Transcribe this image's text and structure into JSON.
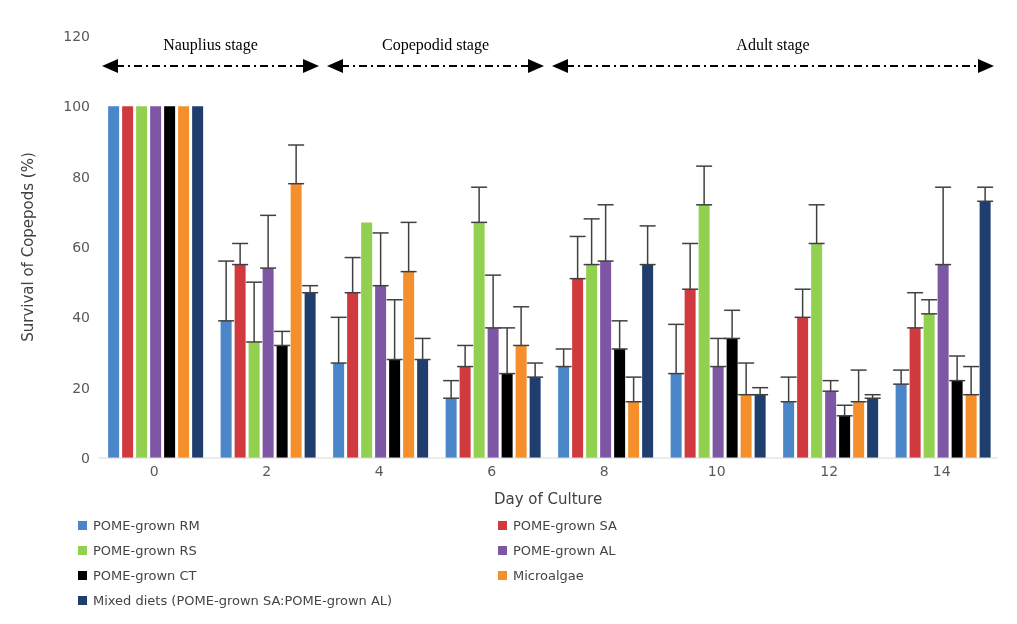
{
  "chart_data": {
    "type": "bar",
    "xlabel": "Day of Culture",
    "ylabel": "Survival of Copepods (%)",
    "categories": [
      "0",
      "2",
      "4",
      "6",
      "8",
      "10",
      "12",
      "14"
    ],
    "ylim": [
      0,
      120
    ],
    "yticks": [
      0,
      20,
      40,
      60,
      80,
      100,
      120
    ],
    "grid": false,
    "legend": "bottom",
    "annotations": [
      "Nauplius stage",
      "Copepodid stage",
      "Adult stage"
    ],
    "series": [
      {
        "name": "POME-grown RM",
        "color": "#4a86c8",
        "values": [
          100,
          39,
          27,
          17,
          26,
          24,
          16,
          21
        ],
        "errors": [
          null,
          [
            39,
            56
          ],
          [
            27,
            40
          ],
          [
            17,
            22
          ],
          [
            26,
            31
          ],
          [
            24,
            38
          ],
          [
            16,
            23
          ],
          [
            21,
            25
          ]
        ]
      },
      {
        "name": "POME-grown SA",
        "color": "#d0393e",
        "values": [
          100,
          55,
          47,
          26,
          51,
          48,
          40,
          37
        ],
        "errors": [
          null,
          [
            55,
            61
          ],
          [
            47,
            57
          ],
          [
            26,
            32
          ],
          [
            51,
            63
          ],
          [
            48,
            61
          ],
          [
            40,
            48
          ],
          [
            37,
            47
          ]
        ]
      },
      {
        "name": "POME-grown RS",
        "color": "#92d050",
        "values": [
          100,
          33,
          67,
          67,
          55,
          72,
          61,
          41
        ],
        "errors": [
          null,
          [
            33,
            50
          ],
          null,
          [
            67,
            77
          ],
          [
            55,
            68
          ],
          [
            72,
            83
          ],
          [
            61,
            72
          ],
          [
            41,
            45
          ]
        ]
      },
      {
        "name": "POME-grown AL",
        "color": "#7e57a4",
        "values": [
          100,
          54,
          49,
          37,
          56,
          26,
          19,
          55
        ],
        "errors": [
          null,
          [
            54,
            69
          ],
          [
            49,
            64
          ],
          [
            37,
            52
          ],
          [
            56,
            72
          ],
          [
            26,
            34
          ],
          [
            19,
            22
          ],
          [
            55,
            77
          ]
        ]
      },
      {
        "name": "POME-grown CT",
        "color": "#000000",
        "values": [
          100,
          32,
          28,
          24,
          31,
          34,
          12,
          22
        ],
        "errors": [
          null,
          [
            32,
            36
          ],
          [
            28,
            45
          ],
          [
            24,
            37
          ],
          [
            31,
            39
          ],
          [
            34,
            42
          ],
          [
            12,
            15
          ],
          [
            22,
            29
          ]
        ]
      },
      {
        "name": "Microalgae",
        "color": "#f58f2c",
        "values": [
          100,
          78,
          53,
          32,
          16,
          18,
          16,
          18
        ],
        "errors": [
          null,
          [
            78,
            89
          ],
          [
            53,
            67
          ],
          [
            32,
            43
          ],
          [
            16,
            23
          ],
          [
            18,
            27
          ],
          [
            16,
            25
          ],
          [
            18,
            26
          ]
        ]
      },
      {
        "name": "Mixed diets (POME-grown SA:POME-grown AL)",
        "color": "#1f3e6e",
        "values": [
          100,
          47,
          28,
          23,
          55,
          18,
          17,
          73
        ],
        "errors": [
          null,
          [
            47,
            49
          ],
          [
            28,
            34
          ],
          [
            23,
            27
          ],
          [
            55,
            66
          ],
          [
            18,
            20
          ],
          [
            17,
            18
          ],
          [
            73,
            77
          ]
        ]
      }
    ]
  }
}
